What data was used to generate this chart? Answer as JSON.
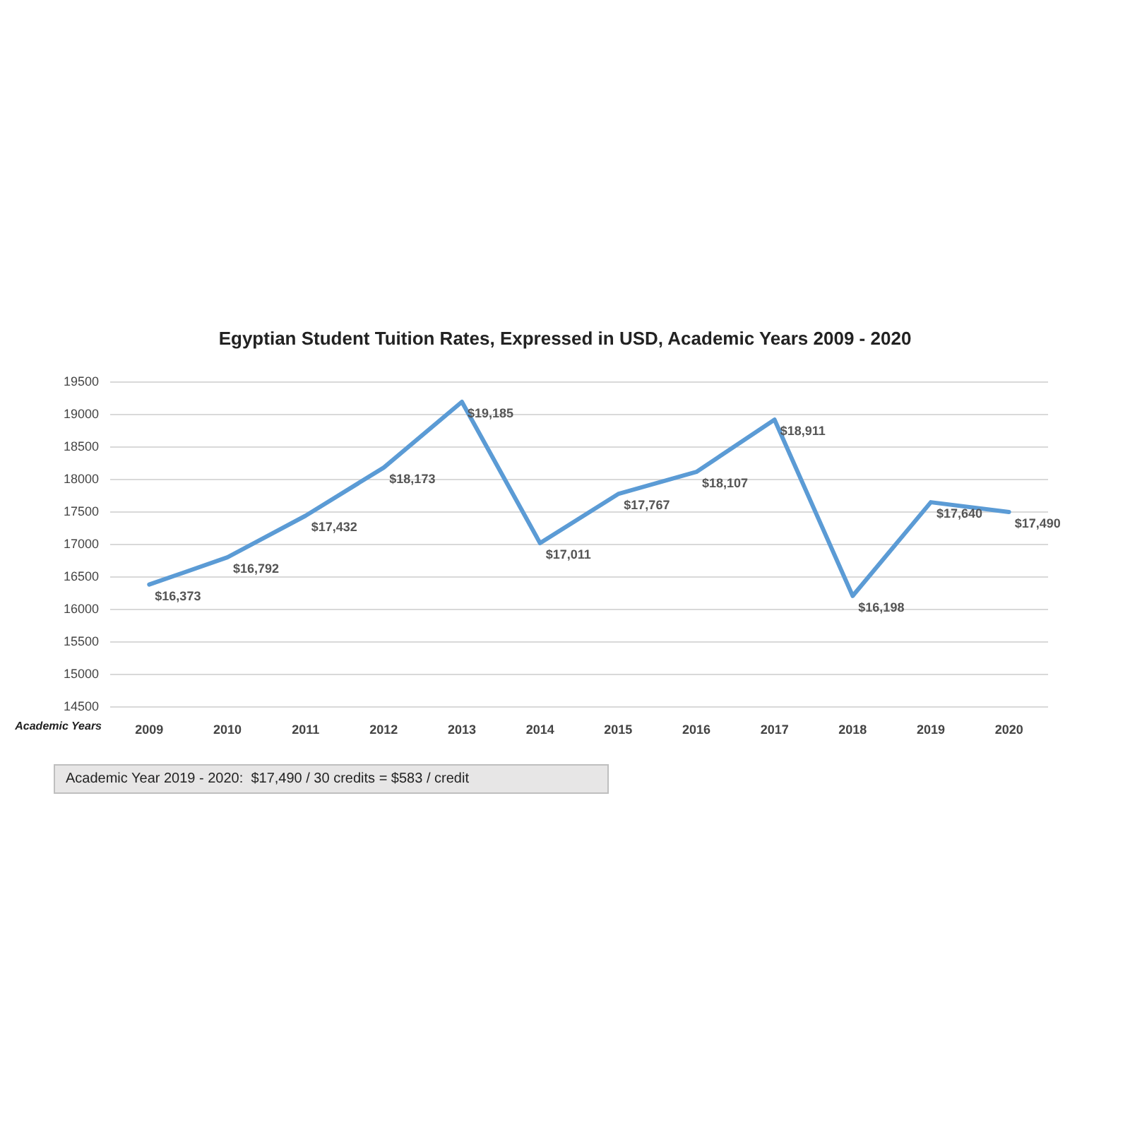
{
  "chart_data": {
    "type": "line",
    "title": "Egyptian Student Tuition Rates, Expressed in USD, Academic Years 2009 - 2020",
    "xlabel": "Academic Years",
    "categories": [
      "2009",
      "2010",
      "2011",
      "2012",
      "2013",
      "2014",
      "2015",
      "2016",
      "2017",
      "2018",
      "2019",
      "2020"
    ],
    "series": [
      {
        "color": "#5b9bd5",
        "values": [
          16373,
          16792,
          17432,
          18173,
          19185,
          17011,
          17767,
          18107,
          18911,
          16198,
          17640,
          17490
        ],
        "value_labels": [
          "$16,373",
          "$16,792",
          "$17,432",
          "$18,173",
          "$19,185",
          "$17,011",
          "$17,767",
          "$18,107",
          "$18,911",
          "$16,198",
          "$17,640",
          "$17,490"
        ]
      }
    ],
    "ylim": [
      14500,
      19500
    ],
    "yticks": [
      14500,
      15000,
      15500,
      16000,
      16500,
      17000,
      17500,
      18000,
      18500,
      19000,
      19500
    ],
    "grid": "y",
    "marker": "none",
    "line_style": "solid",
    "annotations": [
      "Academic Year 2019 - 2020:  $17,490 / 30 credits = $583 / credit"
    ]
  }
}
